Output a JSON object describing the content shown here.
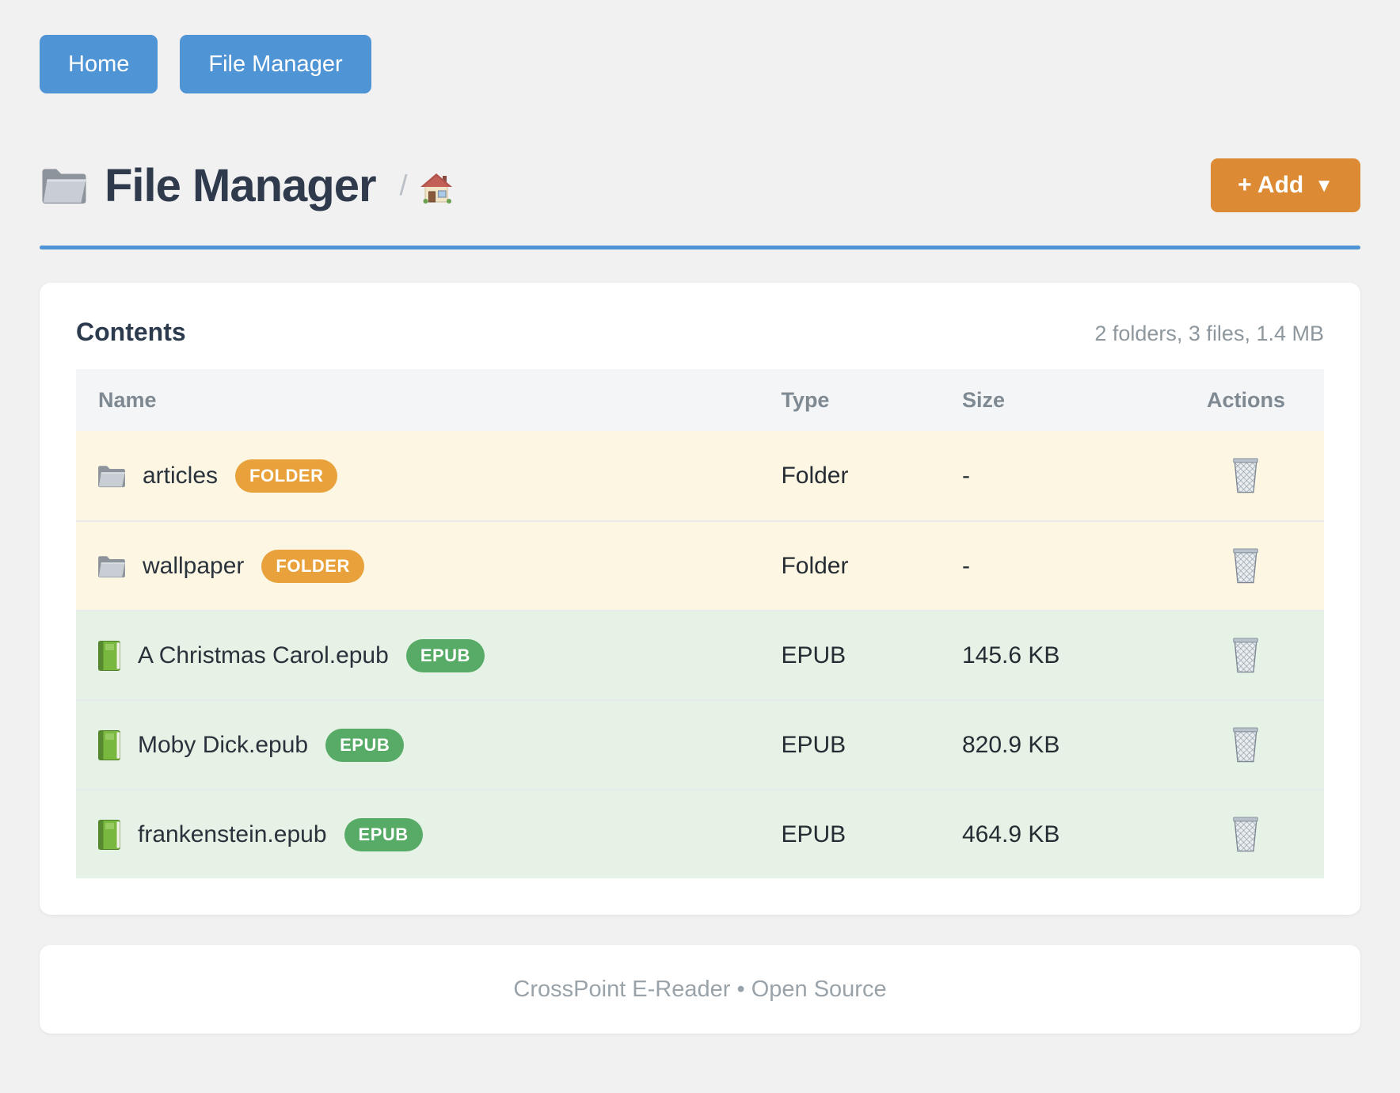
{
  "nav": {
    "home": "Home",
    "file_manager": "File Manager"
  },
  "header": {
    "title": "File Manager",
    "title_icon": "folder-icon",
    "breadcrumb_separator": "/",
    "breadcrumb_home_icon": "house-icon",
    "add_button": "+ Add",
    "add_caret": "▼"
  },
  "contents": {
    "heading": "Contents",
    "summary": "2 folders, 3 files, 1.4 MB",
    "columns": {
      "name": "Name",
      "type": "Type",
      "size": "Size",
      "actions": "Actions"
    },
    "action_icon": "trash-icon",
    "rows": [
      {
        "icon": "folder-icon",
        "name": "articles",
        "badge": "FOLDER",
        "type": "Folder",
        "size": "-",
        "kind": "folder"
      },
      {
        "icon": "folder-icon",
        "name": "wallpaper",
        "badge": "FOLDER",
        "type": "Folder",
        "size": "-",
        "kind": "folder"
      },
      {
        "icon": "book-icon",
        "name": "A Christmas Carol.epub",
        "badge": "EPUB",
        "type": "EPUB",
        "size": "145.6 KB",
        "kind": "epub"
      },
      {
        "icon": "book-icon",
        "name": "Moby Dick.epub",
        "badge": "EPUB",
        "type": "EPUB",
        "size": "820.9 KB",
        "kind": "epub"
      },
      {
        "icon": "book-icon",
        "name": "frankenstein.epub",
        "badge": "EPUB",
        "type": "EPUB",
        "size": "464.9 KB",
        "kind": "epub"
      }
    ]
  },
  "footer": {
    "text": "CrossPoint E-Reader • Open Source"
  },
  "colors": {
    "primary_blue": "#4f94d4",
    "accent_orange": "#dc8a33",
    "badge_orange": "#e9a23b",
    "badge_green": "#57ab66",
    "folder_row_bg": "#fcf6e3",
    "epub_row_bg": "#e7f2e6",
    "title_text": "#2f3a4c"
  }
}
